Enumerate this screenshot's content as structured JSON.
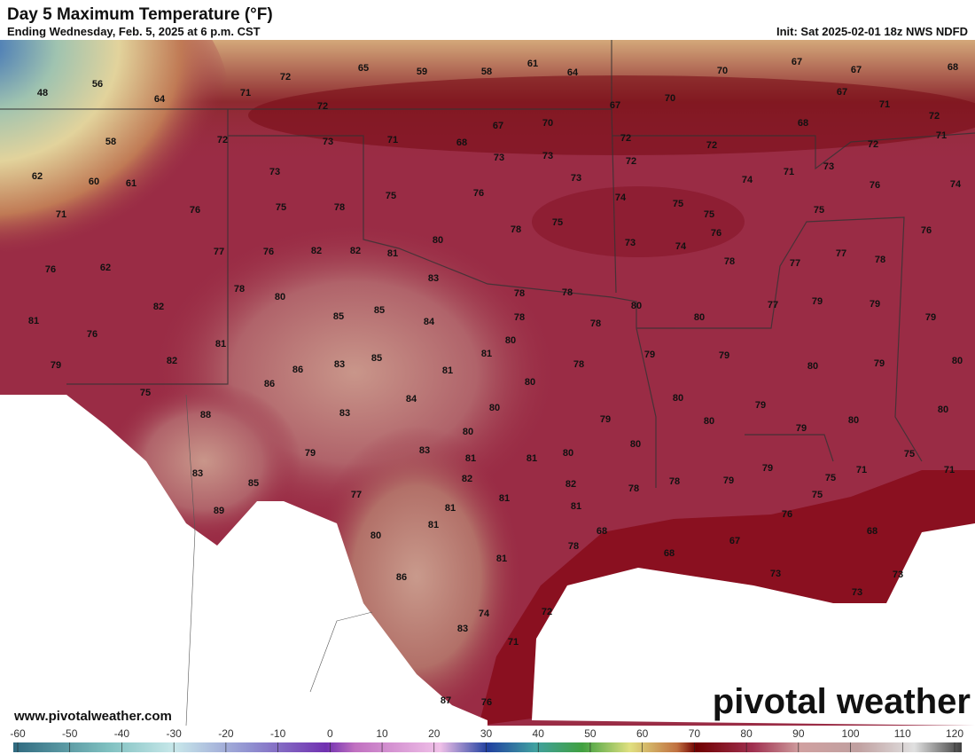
{
  "header": {
    "title": "Day 5 Maximum Temperature (°F)",
    "subtitle": "Ending Wednesday, Feb. 5, 2025 at 6 p.m. CST",
    "init": "Init: Sat 2025-02-01 18z NWS NDFD"
  },
  "footer": {
    "website": "www.pivotalweather.com",
    "logo": "pivotal weather"
  },
  "colorbar": {
    "ticks": [
      -60,
      -50,
      -40,
      -30,
      -20,
      -10,
      0,
      10,
      20,
      30,
      40,
      50,
      60,
      70,
      80,
      90,
      100,
      110,
      120
    ]
  },
  "labels": [
    48,
    56,
    64,
    71,
    72,
    65,
    59,
    58,
    61,
    64,
    70,
    67,
    67,
    68,
    72,
    70,
    67,
    67,
    71,
    72,
    58,
    72,
    73,
    71,
    68,
    67,
    70,
    72,
    72,
    68,
    72,
    71,
    62,
    60,
    61,
    73,
    73,
    73,
    72,
    73,
    71,
    74,
    73,
    76,
    74,
    71,
    76,
    75,
    78,
    75,
    76,
    74,
    75,
    75,
    75,
    78,
    75,
    80,
    76,
    76,
    76,
    62,
    77,
    76,
    82,
    82,
    81,
    73,
    74,
    78,
    77,
    77,
    78,
    83,
    78,
    80,
    78,
    78,
    80,
    80,
    77,
    79,
    79,
    79,
    81,
    82,
    85,
    85,
    84,
    78,
    78,
    76,
    81,
    80,
    81,
    79,
    79,
    80,
    79,
    80,
    79,
    82,
    86,
    83,
    85,
    81,
    78,
    80,
    75,
    86,
    84,
    80,
    80,
    79,
    80,
    88,
    83,
    80,
    79,
    80,
    79,
    80,
    80,
    79,
    83,
    81,
    81,
    80,
    75,
    71,
    83,
    85,
    82,
    82,
    78,
    78,
    79,
    79,
    75,
    71,
    75,
    89,
    77,
    81,
    81,
    81,
    76,
    81,
    68,
    80,
    67,
    68,
    78,
    68,
    81,
    73,
    73,
    86,
    73,
    74,
    72,
    83,
    71,
    87,
    76
  ]
}
